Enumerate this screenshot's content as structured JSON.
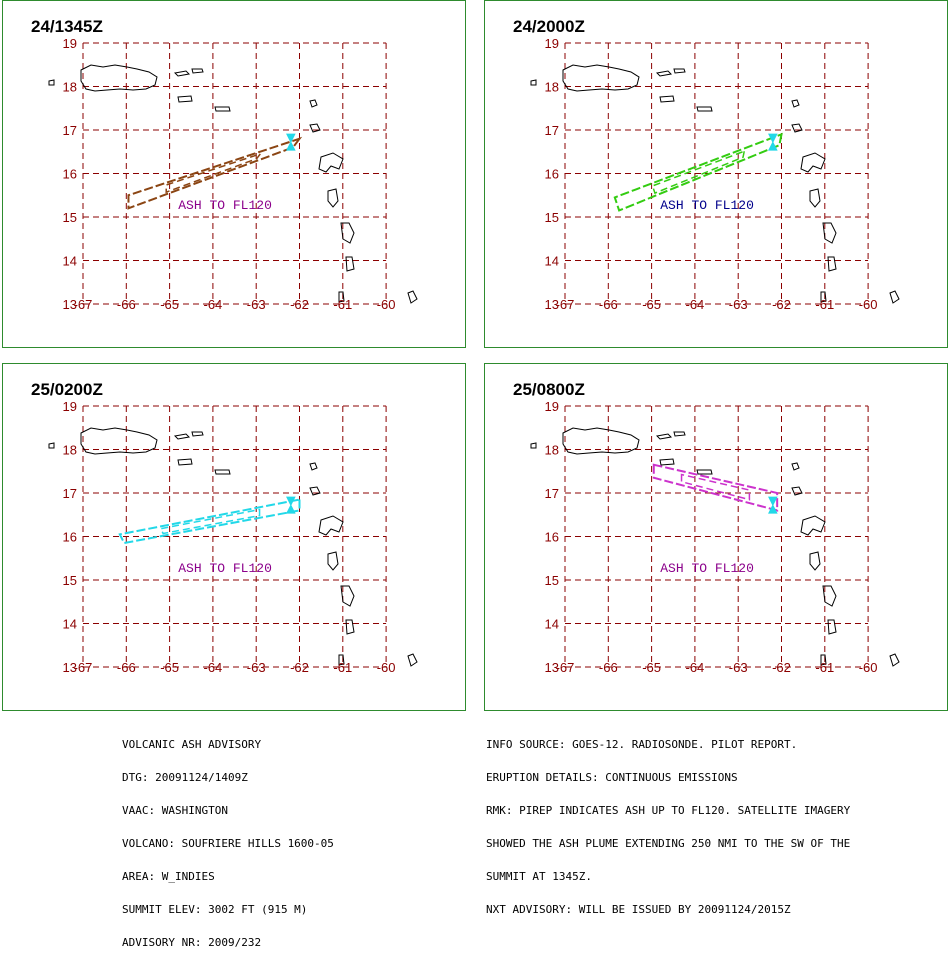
{
  "panels": [
    {
      "time": "24/1345Z",
      "label": "ASH TO FL120",
      "label_color": "#8b008b",
      "plume_color": "#8b4513",
      "plume": [
        [
          -62.0,
          16.8
        ],
        [
          -62.15,
          16.6
        ],
        [
          -65.95,
          15.2
        ],
        [
          -65.95,
          15.5
        ]
      ]
    },
    {
      "time": "24/2000Z",
      "label": "ASH TO FL120",
      "label_color": "#00008b",
      "plume_color": "#33cc11",
      "plume": [
        [
          -62.0,
          16.9
        ],
        [
          -62.05,
          16.65
        ],
        [
          -65.75,
          15.15
        ],
        [
          -65.85,
          15.45
        ]
      ]
    },
    {
      "time": "25/0200Z",
      "label": "ASH TO FL120",
      "label_color": "#8b008b",
      "plume_color": "#22d8e8",
      "plume": [
        [
          -62.0,
          16.85
        ],
        [
          -62.0,
          16.6
        ],
        [
          -66.05,
          15.85
        ],
        [
          -66.15,
          16.05
        ]
      ]
    },
    {
      "time": "25/0800Z",
      "label": "ASH TO FL120",
      "label_color": "#8b008b",
      "plume_color": "#cc33cc",
      "plume": [
        [
          -64.95,
          17.65
        ],
        [
          -64.95,
          17.35
        ],
        [
          -62.1,
          16.6
        ],
        [
          -62.1,
          17.0
        ]
      ]
    }
  ],
  "axis": {
    "lat_labels": [
      "19",
      "18",
      "17",
      "16",
      "15",
      "14",
      "13"
    ],
    "lon_labels": [
      "-67",
      "-66",
      "-65",
      "-64",
      "-63",
      "-62",
      "-61",
      "-60"
    ]
  },
  "colors": {
    "grid": "#8b0000",
    "panel_border": "#2e8b2e",
    "volcano": "#22d8e8"
  },
  "advisory": {
    "left_lines": [
      "VOLCANIC ASH ADVISORY",
      "DTG: 20091124/1409Z",
      "VAAC: WASHINGTON",
      "VOLCANO: SOUFRIERE HILLS 1600-05",
      "AREA: W_INDIES",
      "SUMMIT ELEV: 3002 FT (915 M)",
      "ADVISORY NR: 2009/232"
    ],
    "right_lines": [
      "INFO SOURCE: GOES-12. RADIOSONDE. PILOT REPORT.",
      "ERUPTION DETAILS: CONTINUOUS EMISSIONS",
      "RMK: PIREP INDICATES ASH UP TO FL120. SATELLITE IMAGERY",
      "SHOWED THE ASH PLUME EXTENDING 250 NMI TO THE SW OF THE",
      "SUMMIT AT 1345Z.",
      "NXT ADVISORY: WILL BE ISSUED BY 20091124/2015Z"
    ]
  }
}
